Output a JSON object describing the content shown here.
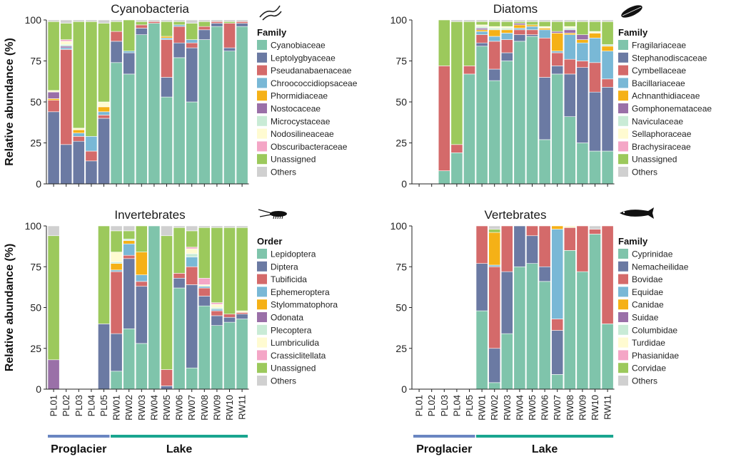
{
  "colors": {
    "Cyanobacteria": [
      "#7fc4ab",
      "#6b7aa3",
      "#d46a6a",
      "#79b8d6",
      "#f5b117",
      "#9a70a8",
      "#c9ebd6",
      "#fffbd1",
      "#f4a6c6",
      "#9cc95c",
      "#d0d0d0"
    ],
    "Diatoms": [
      "#7fc4ab",
      "#6b7aa3",
      "#d46a6a",
      "#79b8d6",
      "#f5b117",
      "#9a70a8",
      "#c9ebd6",
      "#fffbd1",
      "#f4a6c6",
      "#9cc95c",
      "#d0d0d0"
    ],
    "Invertebrates": [
      "#7fc4ab",
      "#6b7aa3",
      "#d46a6a",
      "#79b8d6",
      "#f5b117",
      "#9a70a8",
      "#c9ebd6",
      "#fffbd1",
      "#f4a6c6",
      "#9cc95c",
      "#d0d0d0"
    ],
    "Vertebrates": [
      "#7fc4ab",
      "#6b7aa3",
      "#d46a6a",
      "#79b8d6",
      "#f5b117",
      "#9a70a8",
      "#c9ebd6",
      "#fffbd1",
      "#f4a6c6",
      "#9cc95c",
      "#d0d0d0"
    ],
    "proglacier_bar": "#6a86c1",
    "lake_bar": "#1aa58f"
  },
  "icons": {
    "Cyanobacteria": "cyanobacteria-filament-icon",
    "Diatoms": "diatom-icon",
    "Invertebrates": "insect-larva-icon",
    "Vertebrates": "fish-icon"
  },
  "groups": [
    {
      "label": "Proglacier",
      "samples": [
        "PL01",
        "PL02",
        "PL03",
        "PL04",
        "PL05"
      ]
    },
    {
      "label": "Lake",
      "samples": [
        "RW01",
        "RW02",
        "RW03",
        "RW04",
        "RW05",
        "RW06",
        "RW07",
        "RW08",
        "RW09",
        "RW10",
        "RW11"
      ]
    }
  ],
  "chart_data": [
    {
      "type": "bar",
      "stacked": true,
      "title": "Cyanobacteria",
      "ylabel": "Relative abundance (%)",
      "ylim": [
        0,
        100
      ],
      "yticks": [
        0,
        25,
        50,
        75,
        100
      ],
      "legend_title": "Family",
      "legend_position": "right",
      "categories": [
        "PL01",
        "PL02",
        "PL03",
        "PL04",
        "PL05",
        "RW01",
        "RW02",
        "RW03",
        "RW04",
        "RW05",
        "RW06",
        "RW07",
        "RW08",
        "RW09",
        "RW10",
        "RW11"
      ],
      "series": [
        {
          "name": "Cyanobiaceae",
          "values": [
            0,
            0,
            0,
            0,
            0,
            74,
            67,
            91,
            98,
            53,
            77,
            50,
            88,
            96,
            81,
            96
          ]
        },
        {
          "name": "Leptolygbyaceae",
          "values": [
            44,
            24,
            26,
            14,
            40,
            13,
            13,
            4,
            0,
            12,
            9,
            33,
            6,
            2,
            2,
            2
          ]
        },
        {
          "name": "Pseudanabaenaceae",
          "values": [
            7,
            58,
            3,
            6,
            2,
            6,
            0,
            2,
            1,
            23,
            10,
            3,
            2,
            1,
            15,
            1
          ]
        },
        {
          "name": "Chroococcidiopsaceae",
          "values": [
            0,
            1,
            2,
            9,
            2,
            0,
            1,
            0,
            0,
            1,
            1,
            2,
            0,
            0,
            0,
            0
          ]
        },
        {
          "name": "Phormidiaceae",
          "values": [
            1,
            0,
            2,
            0,
            3,
            0,
            0,
            0,
            0,
            1,
            0,
            0,
            0,
            0,
            0,
            0
          ]
        },
        {
          "name": "Nostocaceae",
          "values": [
            4,
            1,
            0,
            0,
            0,
            0,
            0,
            0,
            0,
            0,
            0,
            0,
            0,
            0,
            0,
            0
          ]
        },
        {
          "name": "Microcystaceae",
          "values": [
            0,
            1,
            0,
            0,
            0,
            0,
            0,
            0,
            0,
            0,
            0,
            0,
            0,
            0,
            0,
            0
          ]
        },
        {
          "name": "Nodosilineaceae",
          "values": [
            1,
            2,
            1,
            0,
            3,
            0,
            0,
            0,
            0,
            0,
            0,
            0,
            0,
            0,
            0,
            0
          ]
        },
        {
          "name": "Obscuribacteraceae",
          "values": [
            0,
            1,
            0,
            0,
            0,
            0,
            0,
            0,
            0,
            0,
            0,
            0,
            0,
            0,
            0,
            0
          ]
        },
        {
          "name": "Unassigned",
          "values": [
            42,
            10,
            65,
            70,
            48,
            6,
            19,
            2,
            0,
            9,
            2,
            10,
            3,
            0,
            1,
            0
          ]
        },
        {
          "name": "Others",
          "values": [
            1,
            2,
            1,
            1,
            2,
            1,
            0,
            1,
            1,
            1,
            1,
            2,
            1,
            1,
            1,
            1
          ]
        }
      ]
    },
    {
      "type": "bar",
      "stacked": true,
      "title": "Diatoms",
      "ylabel": "",
      "ylim": [
        0,
        100
      ],
      "yticks": [
        0,
        25,
        50,
        75,
        100
      ],
      "legend_title": "Family",
      "legend_position": "right",
      "categories": [
        "PL01",
        "PL02",
        "PL03",
        "PL04",
        "PL05",
        "RW01",
        "RW02",
        "RW03",
        "RW04",
        "RW05",
        "RW06",
        "RW07",
        "RW08",
        "RW09",
        "RW10",
        "RW11"
      ],
      "series": [
        {
          "name": "Fragilariaceae",
          "values": [
            0,
            0,
            8,
            19,
            67,
            84,
            63,
            75,
            87,
            90,
            27,
            67,
            41,
            25,
            20,
            20
          ]
        },
        {
          "name": "Stephanodiscaceae",
          "values": [
            0,
            0,
            0,
            0,
            0,
            2,
            7,
            5,
            4,
            1,
            38,
            5,
            26,
            46,
            36,
            39
          ]
        },
        {
          "name": "Cymbellaceae",
          "values": [
            0,
            0,
            64,
            5,
            5,
            5,
            17,
            8,
            3,
            3,
            24,
            8,
            9,
            4,
            18,
            5
          ]
        },
        {
          "name": "Bacillariaceae",
          "values": [
            0,
            0,
            0,
            0,
            0,
            2,
            3,
            4,
            1,
            2,
            5,
            1,
            15,
            11,
            15,
            17
          ]
        },
        {
          "name": "Achnanthidiaceae",
          "values": [
            0,
            0,
            0,
            0,
            0,
            1,
            4,
            2,
            2,
            1,
            1,
            11,
            1,
            2,
            3,
            3
          ]
        },
        {
          "name": "Gomphonemataceae",
          "values": [
            0,
            0,
            0,
            0,
            0,
            1,
            0,
            0,
            1,
            0,
            0,
            1,
            2,
            3,
            0,
            0
          ]
        },
        {
          "name": "Naviculaceae",
          "values": [
            0,
            0,
            0,
            0,
            0,
            1,
            1,
            1,
            0,
            0,
            0,
            0,
            1,
            0,
            0,
            1
          ]
        },
        {
          "name": "Sellaphoraceae",
          "values": [
            0,
            0,
            0,
            0,
            0,
            1,
            1,
            1,
            0,
            0,
            1,
            0,
            1,
            0,
            1,
            0
          ]
        },
        {
          "name": "Brachysiraceae",
          "values": [
            0,
            0,
            0,
            0,
            0,
            0,
            0,
            0,
            0,
            0,
            0,
            0,
            0,
            0,
            0,
            0
          ]
        },
        {
          "name": "Unassigned",
          "values": [
            0,
            0,
            28,
            75,
            27,
            2,
            3,
            3,
            1,
            2,
            3,
            6,
            3,
            8,
            6,
            14
          ]
        },
        {
          "name": "Others",
          "values": [
            0,
            0,
            0,
            1,
            1,
            1,
            1,
            1,
            1,
            1,
            1,
            1,
            1,
            1,
            1,
            1
          ]
        }
      ]
    },
    {
      "type": "bar",
      "stacked": true,
      "title": "Invertebrates",
      "ylabel": "Relative abundance (%)",
      "ylim": [
        0,
        100
      ],
      "yticks": [
        0,
        25,
        50,
        75,
        100
      ],
      "legend_title": "Order",
      "legend_position": "right",
      "categories": [
        "PL01",
        "PL02",
        "PL03",
        "PL04",
        "PL05",
        "RW01",
        "RW02",
        "RW03",
        "RW04",
        "RW05",
        "RW06",
        "RW07",
        "RW08",
        "RW09",
        "RW10",
        "RW11"
      ],
      "series": [
        {
          "name": "Lepidoptera",
          "values": [
            0,
            0,
            0,
            0,
            0,
            11,
            37,
            28,
            100,
            0,
            62,
            13,
            51,
            39,
            41,
            43
          ]
        },
        {
          "name": "Diptera",
          "values": [
            0,
            0,
            0,
            0,
            40,
            23,
            43,
            35,
            0,
            2,
            6,
            51,
            6,
            6,
            3,
            3
          ]
        },
        {
          "name": "Tubificida",
          "values": [
            0,
            0,
            0,
            0,
            0,
            38,
            2,
            3,
            0,
            10,
            3,
            11,
            5,
            3,
            2,
            1
          ]
        },
        {
          "name": "Ephemeroptera",
          "values": [
            0,
            0,
            0,
            0,
            0,
            1,
            7,
            4,
            0,
            0,
            0,
            6,
            1,
            1,
            0,
            0
          ]
        },
        {
          "name": "Stylommatophora",
          "values": [
            0,
            0,
            0,
            0,
            0,
            4,
            2,
            14,
            0,
            0,
            0,
            0,
            0,
            0,
            0,
            0
          ]
        },
        {
          "name": "Odonata",
          "values": [
            18,
            0,
            0,
            0,
            0,
            0,
            0,
            0,
            0,
            0,
            0,
            0,
            0,
            0,
            0,
            0
          ]
        },
        {
          "name": "Plecoptera",
          "values": [
            0,
            0,
            0,
            0,
            0,
            1,
            1,
            0,
            0,
            0,
            0,
            2,
            0,
            1,
            0,
            0
          ]
        },
        {
          "name": "Lumbriculida",
          "values": [
            0,
            0,
            0,
            0,
            0,
            6,
            0,
            0,
            0,
            0,
            0,
            3,
            1,
            2,
            0,
            1
          ]
        },
        {
          "name": "Crassiclitellata",
          "values": [
            0,
            0,
            0,
            0,
            0,
            0,
            0,
            0,
            0,
            0,
            0,
            1,
            4,
            1,
            0,
            0
          ]
        },
        {
          "name": "Unassigned",
          "values": [
            76,
            0,
            0,
            0,
            60,
            13,
            5,
            16,
            0,
            82,
            28,
            10,
            31,
            46,
            53,
            51
          ]
        },
        {
          "name": "Others",
          "values": [
            6,
            0,
            0,
            0,
            0,
            3,
            3,
            0,
            0,
            6,
            1,
            3,
            1,
            1,
            1,
            1
          ]
        }
      ]
    },
    {
      "type": "bar",
      "stacked": true,
      "title": "Vertebrates",
      "ylabel": "",
      "ylim": [
        0,
        100
      ],
      "yticks": [
        0,
        25,
        50,
        75,
        100
      ],
      "legend_title": "Family",
      "legend_position": "right",
      "categories": [
        "PL01",
        "PL02",
        "PL03",
        "PL04",
        "PL05",
        "RW01",
        "RW02",
        "RW03",
        "RW04",
        "RW05",
        "RW06",
        "RW07",
        "RW08",
        "RW09",
        "RW10",
        "RW11"
      ],
      "series": [
        {
          "name": "Cyprinidae",
          "values": [
            0,
            0,
            0,
            0,
            0,
            48,
            4,
            34,
            75,
            77,
            66,
            9,
            85,
            72,
            95,
            40
          ]
        },
        {
          "name": "Nemacheilidae",
          "values": [
            0,
            0,
            0,
            0,
            0,
            29,
            21,
            38,
            25,
            17,
            9,
            27,
            0,
            0,
            0,
            0
          ]
        },
        {
          "name": "Bovidae",
          "values": [
            0,
            0,
            0,
            0,
            0,
            23,
            50,
            28,
            0,
            6,
            25,
            7,
            14,
            28,
            3,
            60
          ]
        },
        {
          "name": "Equidae",
          "values": [
            0,
            0,
            0,
            0,
            0,
            0,
            1,
            0,
            0,
            0,
            0,
            55,
            0,
            0,
            0,
            0
          ]
        },
        {
          "name": "Canidae",
          "values": [
            0,
            0,
            0,
            0,
            0,
            0,
            20,
            0,
            0,
            0,
            0,
            2,
            0,
            0,
            0,
            0
          ]
        },
        {
          "name": "Suidae",
          "values": [
            0,
            0,
            0,
            0,
            0,
            0,
            0,
            0,
            0,
            0,
            0,
            0,
            0,
            0,
            0,
            0
          ]
        },
        {
          "name": "Columbidae",
          "values": [
            0,
            0,
            0,
            0,
            0,
            0,
            0,
            0,
            0,
            0,
            0,
            0,
            0,
            0,
            0,
            0
          ]
        },
        {
          "name": "Turdidae",
          "values": [
            0,
            0,
            0,
            0,
            0,
            0,
            0,
            0,
            0,
            0,
            0,
            0,
            1,
            0,
            0,
            0
          ]
        },
        {
          "name": "Phasianidae",
          "values": [
            0,
            0,
            0,
            0,
            0,
            0,
            0,
            0,
            0,
            0,
            0,
            0,
            0,
            0,
            0,
            0
          ]
        },
        {
          "name": "Corvidae",
          "values": [
            0,
            0,
            0,
            0,
            0,
            0,
            2,
            0,
            0,
            0,
            0,
            0,
            0,
            0,
            0,
            0
          ]
        },
        {
          "name": "Others",
          "values": [
            0,
            0,
            0,
            0,
            0,
            0,
            2,
            0,
            0,
            0,
            0,
            0,
            0,
            0,
            2,
            0
          ]
        }
      ]
    }
  ]
}
